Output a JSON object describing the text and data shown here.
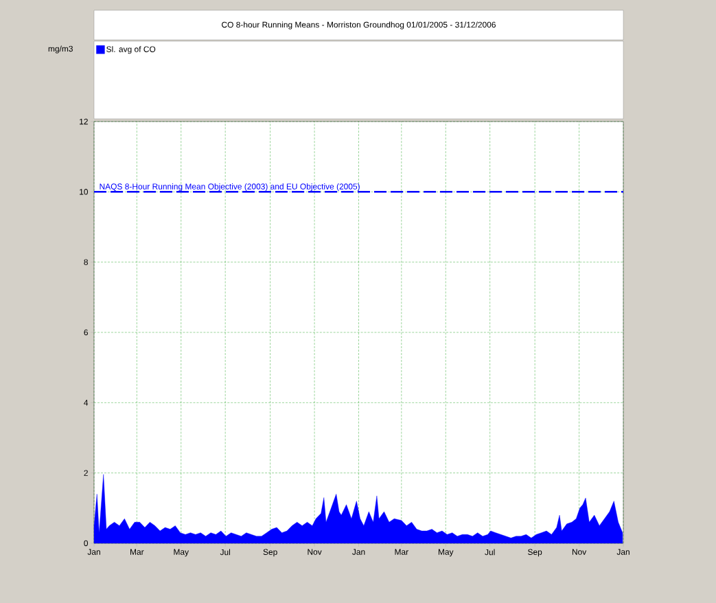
{
  "chart_data": {
    "type": "area",
    "title": "CO 8-hour Running Means - Morriston Groundhog    01/01/2005 - 31/12/2006",
    "annotations": [
      "mg/m3"
    ],
    "legend": "top left",
    "grid": true,
    "xlim": [
      "2005-01-01",
      "2007-01-01"
    ],
    "xticks": [
      {
        "value": "2005-01-01",
        "label": "Jan"
      },
      {
        "value": "2005-03-01",
        "label": "Mar"
      },
      {
        "value": "2005-05-01",
        "label": "May"
      },
      {
        "value": "2005-07-01",
        "label": "Jul"
      },
      {
        "value": "2005-09-01",
        "label": "Sep"
      },
      {
        "value": "2005-11-01",
        "label": "Nov"
      },
      {
        "value": "2006-01-01",
        "label": "Jan"
      },
      {
        "value": "2006-03-01",
        "label": "Mar"
      },
      {
        "value": "2006-05-01",
        "label": "May"
      },
      {
        "value": "2006-07-01",
        "label": "Jul"
      },
      {
        "value": "2006-09-01",
        "label": "Sep"
      },
      {
        "value": "2006-11-01",
        "label": "Nov"
      },
      {
        "value": "2007-01-01",
        "label": "Jan"
      }
    ],
    "ylim": [
      0,
      12
    ],
    "yticks": [
      0,
      2,
      4,
      6,
      8,
      10,
      12
    ],
    "ref_lines": [
      {
        "axis": "y",
        "value": 10,
        "label": "NAQS 8-Hour Running Mean Objective (2003) and EU Objective (2005)",
        "color": "#0000ff",
        "line_style": "dashed"
      }
    ],
    "x": [
      "2005-01-01",
      "2005-01-05",
      "2005-01-08",
      "2005-01-14",
      "2005-01-18",
      "2005-01-22",
      "2005-01-29",
      "2005-02-05",
      "2005-02-12",
      "2005-02-19",
      "2005-02-26",
      "2005-03-05",
      "2005-03-12",
      "2005-03-19",
      "2005-03-26",
      "2005-04-02",
      "2005-04-09",
      "2005-04-16",
      "2005-04-23",
      "2005-04-30",
      "2005-05-07",
      "2005-05-14",
      "2005-05-21",
      "2005-05-28",
      "2005-06-04",
      "2005-06-11",
      "2005-06-18",
      "2005-06-25",
      "2005-07-02",
      "2005-07-09",
      "2005-07-16",
      "2005-07-23",
      "2005-07-30",
      "2005-08-06",
      "2005-08-13",
      "2005-08-20",
      "2005-08-27",
      "2005-09-03",
      "2005-09-10",
      "2005-09-17",
      "2005-09-24",
      "2005-10-01",
      "2005-10-08",
      "2005-10-15",
      "2005-10-22",
      "2005-10-29",
      "2005-11-03",
      "2005-11-10",
      "2005-11-14",
      "2005-11-17",
      "2005-11-24",
      "2005-12-01",
      "2005-12-05",
      "2005-12-08",
      "2005-12-15",
      "2005-12-22",
      "2005-12-29",
      "2006-01-03",
      "2006-01-08",
      "2006-01-15",
      "2006-01-21",
      "2006-01-26",
      "2006-01-29",
      "2006-02-05",
      "2006-02-12",
      "2006-02-19",
      "2006-03-01",
      "2006-03-08",
      "2006-03-15",
      "2006-03-22",
      "2006-03-29",
      "2006-04-05",
      "2006-04-12",
      "2006-04-19",
      "2006-04-26",
      "2006-05-03",
      "2006-05-10",
      "2006-05-17",
      "2006-05-24",
      "2006-05-31",
      "2006-06-07",
      "2006-06-14",
      "2006-06-21",
      "2006-06-28",
      "2006-07-02",
      "2006-07-09",
      "2006-07-16",
      "2006-07-23",
      "2006-07-30",
      "2006-08-06",
      "2006-08-13",
      "2006-08-20",
      "2006-08-27",
      "2006-09-03",
      "2006-09-10",
      "2006-09-17",
      "2006-09-24",
      "2006-10-01",
      "2006-10-05",
      "2006-10-08",
      "2006-10-15",
      "2006-10-22",
      "2006-10-28",
      "2006-11-02",
      "2006-11-06",
      "2006-11-10",
      "2006-11-15",
      "2006-11-22",
      "2006-11-29",
      "2006-12-06",
      "2006-12-13",
      "2006-12-19",
      "2006-12-25",
      "2006-12-31"
    ],
    "series": [
      {
        "name": "Sl. avg of CO",
        "color": "#0000ff",
        "values": [
          0.5,
          1.4,
          0.3,
          1.96,
          0.4,
          0.5,
          0.6,
          0.5,
          0.7,
          0.4,
          0.6,
          0.6,
          0.45,
          0.6,
          0.5,
          0.35,
          0.45,
          0.4,
          0.5,
          0.3,
          0.25,
          0.3,
          0.25,
          0.3,
          0.2,
          0.3,
          0.25,
          0.35,
          0.2,
          0.3,
          0.25,
          0.2,
          0.3,
          0.25,
          0.2,
          0.2,
          0.3,
          0.4,
          0.45,
          0.3,
          0.35,
          0.5,
          0.6,
          0.5,
          0.6,
          0.5,
          0.7,
          0.85,
          1.3,
          0.6,
          1.0,
          1.4,
          0.9,
          0.8,
          1.1,
          0.7,
          1.2,
          0.7,
          0.5,
          0.9,
          0.6,
          1.35,
          0.7,
          0.9,
          0.6,
          0.7,
          0.65,
          0.5,
          0.6,
          0.4,
          0.35,
          0.35,
          0.4,
          0.3,
          0.35,
          0.25,
          0.3,
          0.2,
          0.25,
          0.25,
          0.2,
          0.3,
          0.2,
          0.25,
          0.35,
          0.3,
          0.25,
          0.2,
          0.15,
          0.2,
          0.2,
          0.25,
          0.15,
          0.25,
          0.3,
          0.35,
          0.25,
          0.45,
          0.8,
          0.35,
          0.55,
          0.6,
          0.7,
          1.0,
          1.1,
          1.29,
          0.6,
          0.8,
          0.5,
          0.7,
          0.9,
          1.2,
          0.6,
          0.3
        ]
      }
    ]
  }
}
